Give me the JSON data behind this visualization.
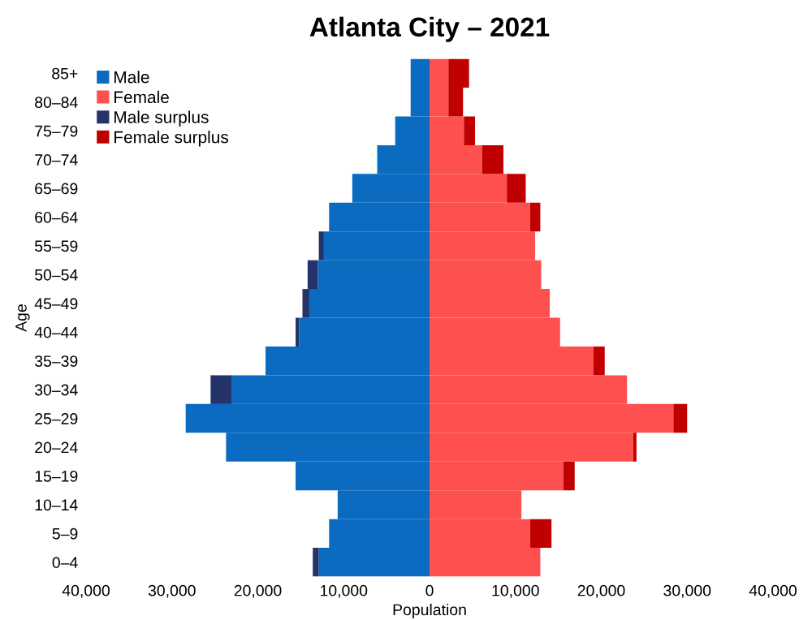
{
  "chart_data": {
    "type": "bar",
    "orientation": "horizontal",
    "stacked": true,
    "title": "Atlanta City – 2021",
    "xlabel": "Population",
    "ylabel": "Age",
    "categories": [
      "85+",
      "80–84",
      "75–79",
      "70–74",
      "65–69",
      "60–64",
      "55–59",
      "50–54",
      "45–49",
      "40–44",
      "35–39",
      "30–34",
      "25–29",
      "20–24",
      "15–19",
      "10–14",
      "5–9",
      "0–4"
    ],
    "series": [
      {
        "name": "Male",
        "color": "#0a6bc1",
        "values": [
          -2200,
          -2200,
          -4000,
          -6100,
          -9000,
          -11700,
          -12300,
          -13000,
          -14000,
          -15200,
          -19100,
          -23000,
          -28400,
          -23700,
          -15600,
          -10700,
          -11700,
          -12900
        ]
      },
      {
        "name": "Female",
        "color": "#ff5050",
        "values": [
          2200,
          2200,
          4000,
          6100,
          9000,
          11700,
          12300,
          13000,
          14000,
          15200,
          19100,
          23000,
          28400,
          23700,
          15600,
          10700,
          11700,
          12900
        ]
      },
      {
        "name": "Male surplus",
        "color": "#24346a",
        "values": [
          null,
          null,
          null,
          null,
          null,
          null,
          -600,
          -1200,
          -800,
          -400,
          null,
          -2500,
          null,
          null,
          null,
          null,
          null,
          -700
        ]
      },
      {
        "name": "Female surplus",
        "color": "#c00000",
        "values": [
          2400,
          1700,
          1300,
          2500,
          2200,
          1200,
          null,
          null,
          null,
          null,
          1300,
          null,
          1600,
          400,
          1300,
          null,
          2500,
          null
        ]
      }
    ],
    "xlim": [
      -40000,
      40000
    ],
    "xticks": [
      {
        "value": -40000,
        "label": "40,000"
      },
      {
        "value": -30000,
        "label": "30,000"
      },
      {
        "value": -20000,
        "label": "20,000"
      },
      {
        "value": -10000,
        "label": "10,000"
      },
      0,
      {
        "value": 10000,
        "label": "10,000"
      },
      {
        "value": 20000,
        "label": "20,000"
      },
      {
        "value": 30000,
        "label": "30,000"
      },
      {
        "value": 40000,
        "label": "40,000"
      }
    ],
    "grid": false,
    "legend": "top left"
  }
}
